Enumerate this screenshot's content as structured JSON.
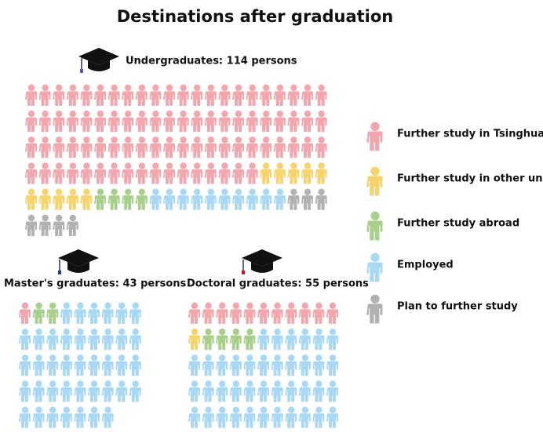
{
  "title": "Destinations after graduation",
  "legend": [
    {
      "label": "Further study in Tsinghua",
      "color": "#f2a6ad"
    },
    {
      "label": "Further study in other units",
      "color": "#f6d36b"
    },
    {
      "label": "Further study abroad",
      "color": "#a8d08c"
    },
    {
      "label": "Employed",
      "color": "#a8d8f3"
    },
    {
      "label": "Plan to further study",
      "color": "#b2b2b2"
    }
  ],
  "groups": [
    {
      "label": "Undergraduates: 114 persons",
      "counts": [
        83,
        10,
        4,
        10,
        7
      ]
    },
    {
      "label": "Master's graduates: 43 persons",
      "counts": [
        1,
        0,
        2,
        40,
        0
      ]
    },
    {
      "label": "Doctoral graduates: 55 persons",
      "counts": [
        11,
        1,
        4,
        39,
        0
      ]
    }
  ]
}
